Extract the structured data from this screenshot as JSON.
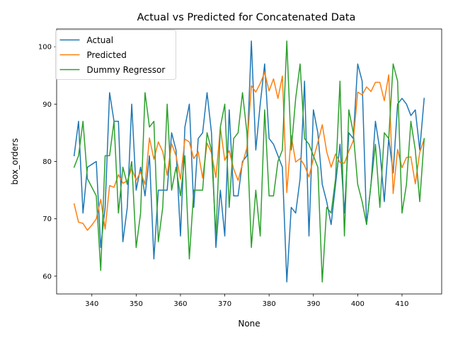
{
  "chart_data": {
    "type": "line",
    "title": "Actual vs Predicted for Concatenated Data",
    "xlabel": "None",
    "ylabel": "box_orders",
    "xlim": [
      332.05,
      418.95
    ],
    "ylim": [
      56.9,
      103.1
    ],
    "xticks": [
      340,
      350,
      360,
      370,
      380,
      390,
      400,
      410
    ],
    "yticks": [
      60,
      70,
      80,
      90,
      100
    ],
    "grid": false,
    "legend_position": "top-left",
    "x_start": 336,
    "x_end": 415,
    "series": [
      {
        "name": "Actual",
        "color": "#1f77b4",
        "values": [
          81,
          87,
          71,
          79,
          79.5,
          80,
          65,
          72,
          92,
          87,
          87,
          66,
          72,
          90,
          75,
          79,
          74,
          81,
          63,
          75,
          75,
          75,
          85,
          82,
          67,
          86,
          90,
          72,
          84,
          85,
          92,
          85,
          65,
          75,
          67,
          89,
          74,
          74,
          80,
          81,
          101,
          82,
          90,
          97,
          84,
          83,
          81,
          79,
          59,
          72,
          71,
          77,
          94,
          67,
          89,
          85,
          76,
          73,
          69,
          76,
          83,
          71,
          85,
          84,
          97,
          94,
          69,
          76,
          87,
          82,
          73,
          84,
          78,
          90,
          91,
          90,
          88,
          89,
          82,
          91
        ]
      },
      {
        "name": "Predicted",
        "color": "#ff7f0e",
        "values": [
          72.6,
          69.4,
          69.2,
          68,
          68.9,
          70,
          73.4,
          68.2,
          75.8,
          75.5,
          77.7,
          76.2,
          76.6,
          78.8,
          76.7,
          78.2,
          76,
          84.1,
          80.4,
          83.4,
          81.7,
          77.6,
          83.1,
          81,
          76.9,
          83.9,
          83.4,
          80.5,
          81.7,
          77.1,
          83.2,
          81.5,
          77.2,
          85.9,
          80.2,
          81.9,
          78.7,
          76.7,
          79.6,
          82.4,
          93.2,
          92.1,
          93.6,
          95.5,
          92.3,
          94.4,
          91,
          94.9,
          74.6,
          84.5,
          79.9,
          80.5,
          79.3,
          77.3,
          80.5,
          83.3,
          86.4,
          81.7,
          79,
          81.3,
          79.8,
          79.7,
          81.8,
          83.6,
          92.1,
          91.6,
          93,
          92.2,
          93.8,
          93.8,
          90.6,
          95.1,
          74.4,
          82.1,
          78.9,
          80.7,
          80.8,
          76.1,
          81.6,
          83.9
        ]
      },
      {
        "name": "Dummy Regressor",
        "color": "#2ca02c",
        "values": [
          79,
          81,
          87,
          77,
          75.5,
          74,
          61,
          81,
          81,
          87,
          71,
          79,
          76,
          80,
          65,
          71,
          92,
          86,
          87,
          66,
          72,
          90,
          75,
          79,
          74,
          81,
          63,
          75,
          75,
          75,
          85,
          82,
          67,
          86,
          90,
          72,
          84,
          85,
          92,
          85,
          65,
          75,
          67,
          89,
          74,
          74,
          80,
          82,
          101,
          82,
          91,
          97,
          84,
          83,
          81,
          79,
          59,
          72,
          71,
          77,
          94,
          67,
          89,
          85,
          76,
          73,
          69,
          76,
          83,
          72,
          85,
          84,
          97,
          94,
          71,
          76,
          87,
          82,
          73,
          84
        ]
      }
    ]
  }
}
